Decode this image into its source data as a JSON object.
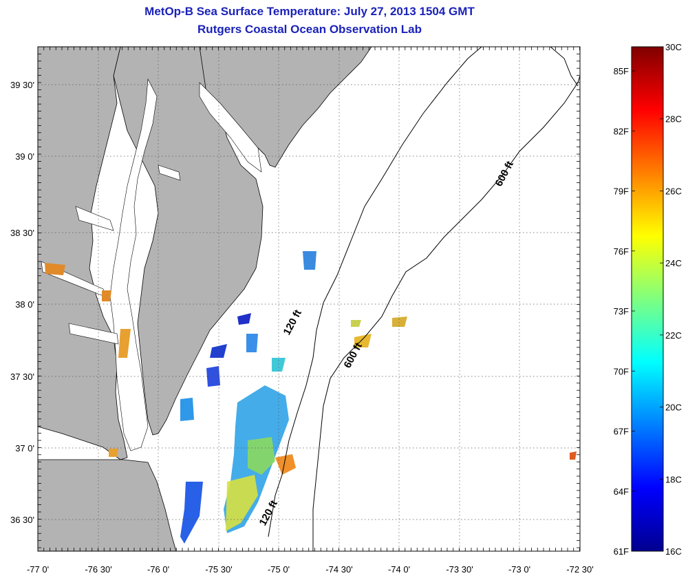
{
  "header": {
    "title": "MetOp-B Sea Surface Temperature:  July 27, 2013 1504 GMT",
    "subtitle": "Rutgers Coastal Ocean Observation Lab"
  },
  "map": {
    "lat_labels": [
      "39 30'",
      "39 0'",
      "38 30'",
      "38 0'",
      "37 30'",
      "37 0'",
      "36 30'"
    ],
    "lon_labels": [
      "-77 0'",
      "-76 30'",
      "-76 0'",
      "-75 30'",
      "-75 0'",
      "-74 30'",
      "-74 0'",
      "-73 30'",
      "-73 0'",
      "-72 30'"
    ],
    "contour_labels": [
      "600 ft",
      "120 ft",
      "600 ft",
      "120 ft"
    ],
    "colors": {
      "land": "#b3b3b3",
      "grid": "#000000",
      "title": "#1a22b8"
    }
  },
  "colorbar": {
    "f_labels": [
      "85F",
      "82F",
      "79F",
      "76F",
      "73F",
      "70F",
      "67F",
      "64F",
      "61F"
    ],
    "c_labels": [
      "30C",
      "28C",
      "26C",
      "24C",
      "22C",
      "20C",
      "18C",
      "16C"
    ]
  }
}
